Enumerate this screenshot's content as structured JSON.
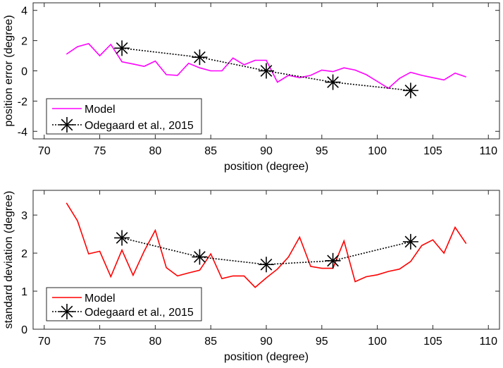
{
  "chart_data": [
    {
      "type": "line",
      "xlabel": "position (degree)",
      "ylabel": "position error (degree)",
      "xlim": [
        69,
        111
      ],
      "ylim": [
        -4.5,
        4.5
      ],
      "xticks": [
        70,
        75,
        80,
        85,
        90,
        95,
        100,
        105,
        110
      ],
      "yticks": [
        -4,
        -2,
        0,
        2,
        4
      ],
      "grid": false,
      "legend_placement": "bottom-left",
      "series": [
        {
          "name": "Model",
          "color": "#ff00ff",
          "style": "solid",
          "x": [
            72,
            73,
            74,
            75,
            76,
            77,
            78,
            79,
            80,
            81,
            82,
            83,
            84,
            85,
            86,
            87,
            88,
            89,
            90,
            91,
            92,
            93,
            94,
            95,
            96,
            97,
            98,
            99,
            100,
            101,
            102,
            103,
            104,
            105,
            106,
            107,
            108
          ],
          "y": [
            1.1,
            1.6,
            1.8,
            1.0,
            1.75,
            0.6,
            0.45,
            0.3,
            0.65,
            -0.25,
            -0.3,
            0.5,
            0.2,
            0.0,
            0.0,
            0.85,
            0.4,
            0.7,
            0.7,
            -0.75,
            -0.3,
            -0.45,
            -0.3,
            0.05,
            -0.05,
            0.2,
            0.05,
            -0.25,
            -0.7,
            -1.15,
            -0.5,
            -0.1,
            -0.3,
            -0.45,
            -0.6,
            -0.15,
            -0.4
          ]
        },
        {
          "name": "Odegaard et al., 2015",
          "color": "#000000",
          "style": "dotted",
          "marker": "asterisk",
          "x": [
            77,
            84,
            90,
            96,
            103
          ],
          "y": [
            1.5,
            0.9,
            0.0,
            -0.75,
            -1.3
          ]
        }
      ]
    },
    {
      "type": "line",
      "xlabel": "position (degree)",
      "ylabel": "standard deviation (degree)",
      "xlim": [
        69,
        111
      ],
      "ylim": [
        0,
        3.65
      ],
      "xticks": [
        70,
        75,
        80,
        85,
        90,
        95,
        100,
        105,
        110
      ],
      "yticks": [
        0,
        1,
        2,
        3
      ],
      "grid": false,
      "legend_placement": "bottom-left",
      "series": [
        {
          "name": "Model",
          "color": "#ff0000",
          "style": "solid",
          "x": [
            72,
            73,
            74,
            75,
            76,
            77,
            78,
            79,
            80,
            81,
            82,
            83,
            84,
            85,
            86,
            87,
            88,
            89,
            90,
            91,
            92,
            93,
            94,
            95,
            96,
            97,
            98,
            99,
            100,
            101,
            102,
            103,
            104,
            105,
            106,
            107,
            108
          ],
          "y": [
            3.32,
            2.85,
            1.98,
            2.05,
            1.38,
            2.08,
            1.42,
            2.05,
            2.6,
            1.62,
            1.4,
            1.48,
            1.55,
            1.98,
            1.33,
            1.4,
            1.4,
            1.1,
            1.35,
            1.58,
            1.9,
            2.42,
            1.65,
            1.6,
            1.6,
            2.32,
            1.25,
            1.38,
            1.43,
            1.52,
            1.58,
            1.78,
            2.2,
            2.35,
            2.0,
            2.68,
            2.25
          ]
        },
        {
          "name": "Odegaard et al., 2015",
          "color": "#000000",
          "style": "dotted",
          "marker": "asterisk",
          "x": [
            77,
            84,
            90,
            96,
            103
          ],
          "y": [
            2.4,
            1.9,
            1.7,
            1.8,
            2.3
          ]
        }
      ]
    }
  ]
}
